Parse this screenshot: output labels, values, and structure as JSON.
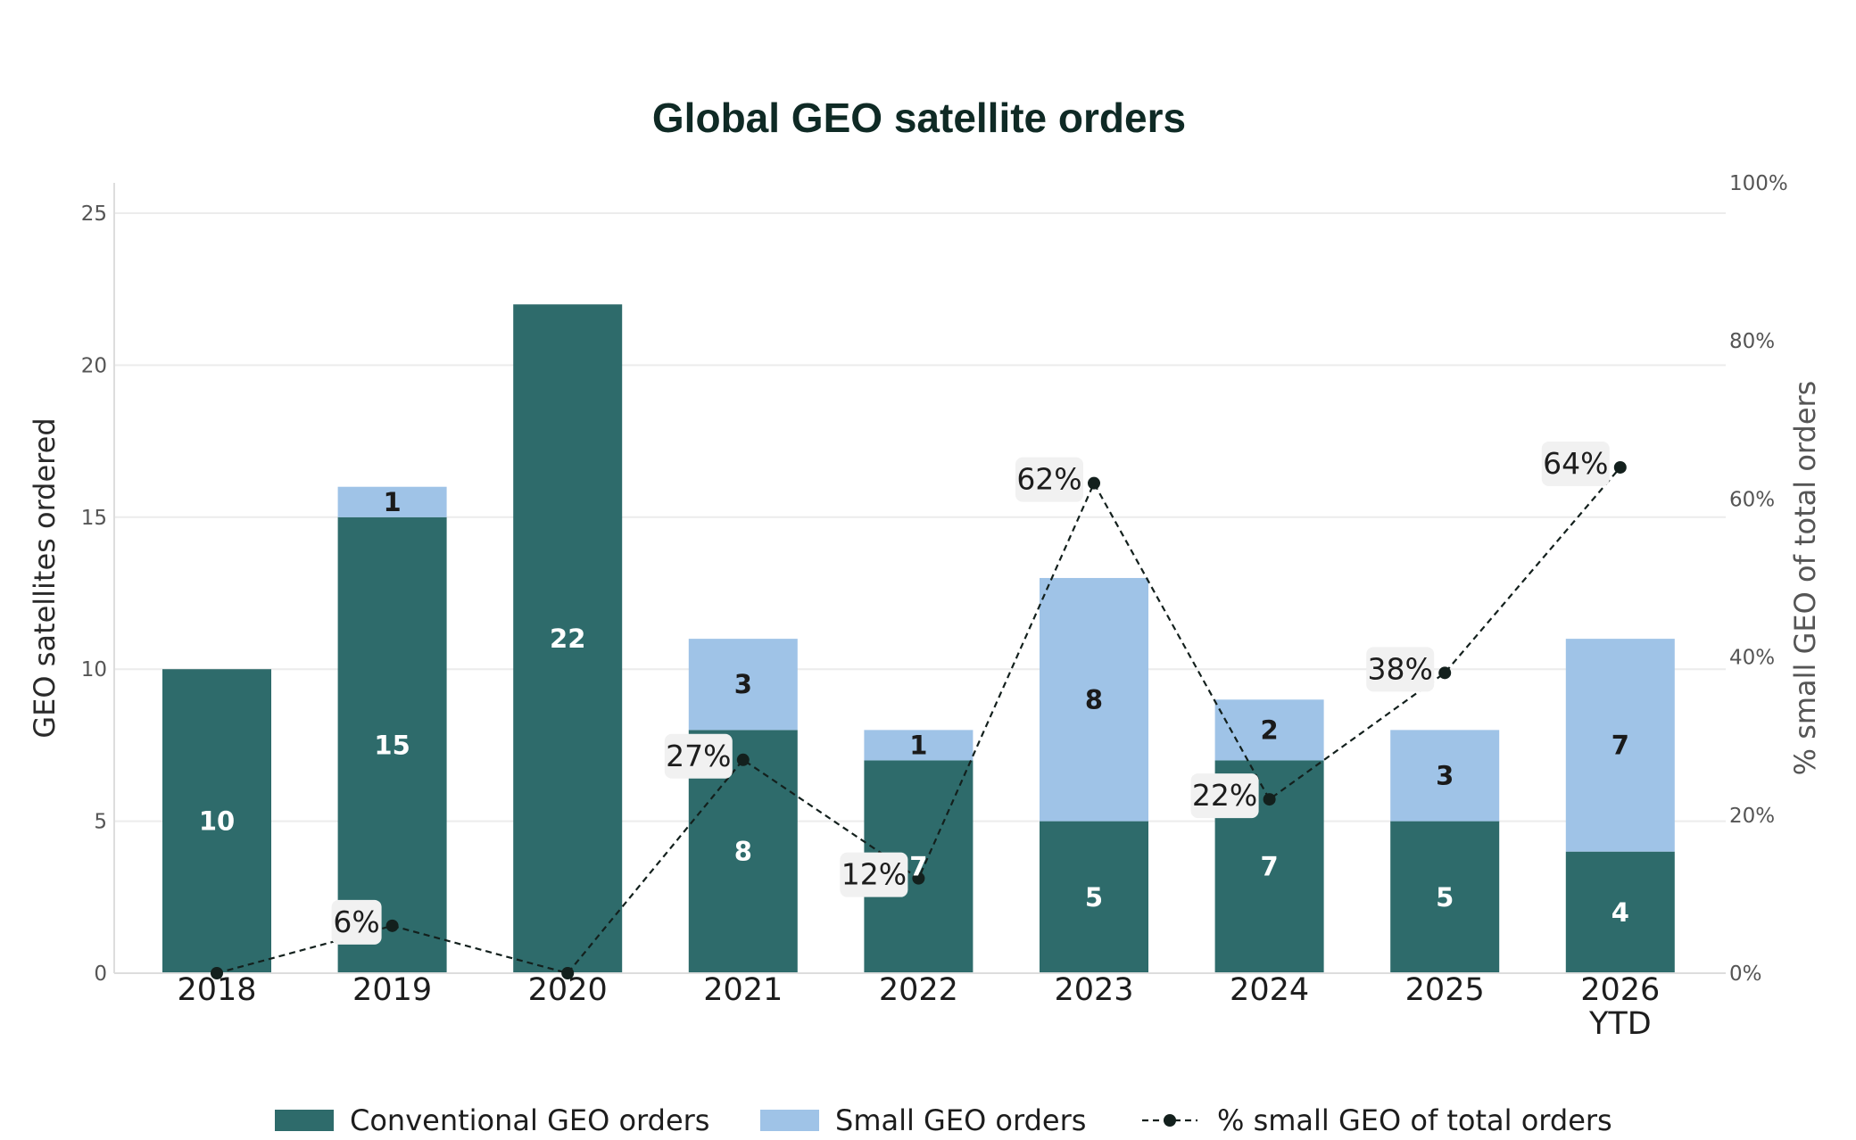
{
  "chart_data": {
    "type": "bar",
    "stacked": true,
    "title": "Global GEO satellite orders",
    "categories": [
      [
        "2018"
      ],
      [
        "2019"
      ],
      [
        "2020"
      ],
      [
        "2021"
      ],
      [
        "2022"
      ],
      [
        "2023"
      ],
      [
        "2024"
      ],
      [
        "2025"
      ],
      [
        "2026",
        "YTD"
      ]
    ],
    "series": [
      {
        "name": "Conventional GEO orders",
        "type": "bar",
        "axis": "left",
        "color": "#2e6b6b",
        "values": [
          10,
          15,
          22,
          8,
          7,
          5,
          7,
          5,
          4
        ]
      },
      {
        "name": "Small GEO orders",
        "type": "bar",
        "axis": "left",
        "color": "#9fc3e7",
        "values": [
          0,
          1,
          0,
          3,
          1,
          8,
          2,
          3,
          7
        ]
      },
      {
        "name": "% small GEO of total orders",
        "type": "line",
        "axis": "right",
        "style": "dashed",
        "color": "#13201d",
        "values": [
          0,
          6,
          0,
          27,
          12,
          62,
          22,
          38,
          64
        ]
      }
    ],
    "ylabel": "GEO satellites ordered",
    "ylim": [
      0,
      25
    ],
    "yticks": [
      "0",
      "5",
      "10",
      "15",
      "20",
      "25"
    ],
    "y2label": "% small GEO of total orders",
    "y2lim": [
      0,
      100
    ],
    "y2ticks": [
      "0%",
      "20%",
      "40%",
      "60%",
      "80%",
      "100%"
    ],
    "y2_suffix": "%",
    "grid": true,
    "legend_position": "bottom"
  }
}
